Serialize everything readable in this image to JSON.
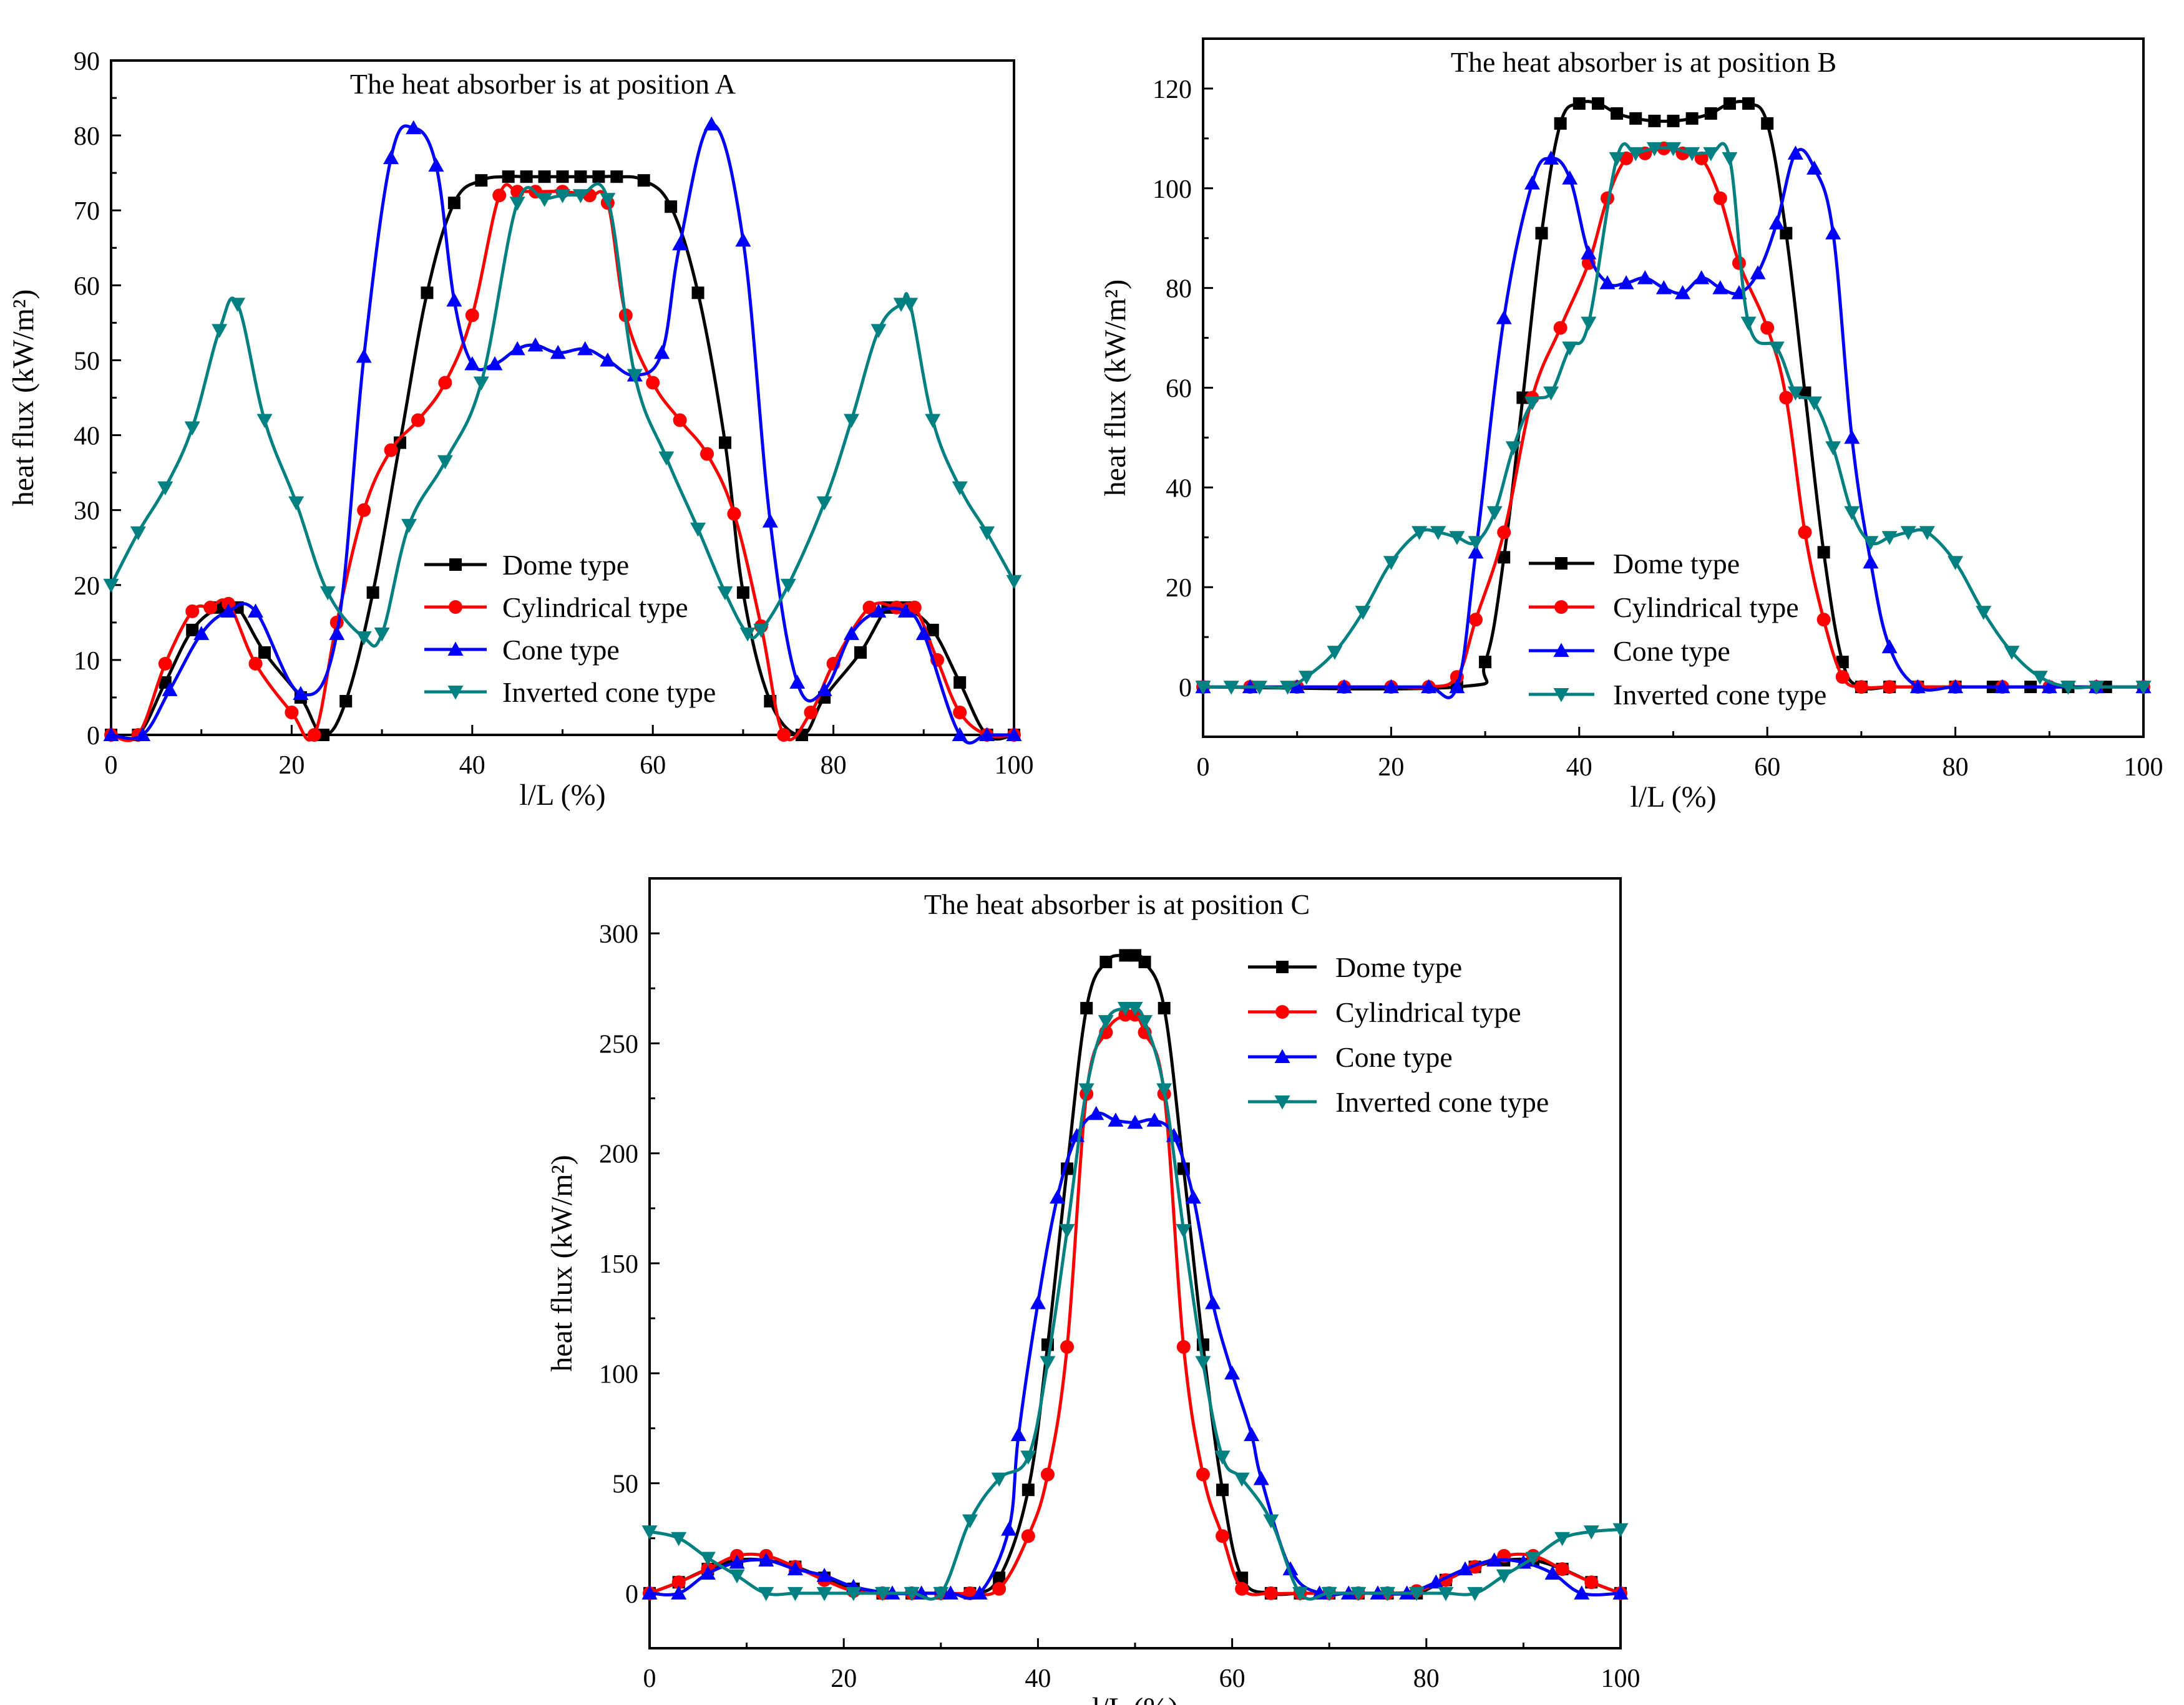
{
  "figure": {
    "colors": {
      "dome": "#000000",
      "cylindrical": "#ff0000",
      "cone": "#0000ff",
      "inverted": "#008080"
    }
  },
  "chart_data": [
    {
      "type": "line",
      "title": "The heat absorber is at position A",
      "xlabel": "l/L (%)",
      "ylabel": "heat flux (kW/m²)",
      "xlim": [
        0,
        100
      ],
      "ylim": [
        0,
        90
      ],
      "xticks": [
        0,
        20,
        40,
        60,
        80,
        100
      ],
      "yticks": [
        0,
        10,
        20,
        30,
        40,
        50,
        60,
        70,
        80,
        90
      ],
      "legend": "lower-center",
      "series": [
        {
          "name": "Dome type",
          "marker": "square",
          "color": "#000000",
          "x": [
            0,
            3,
            6,
            9,
            12,
            14,
            17,
            21,
            23.5,
            26,
            29,
            32,
            35,
            38,
            41,
            44,
            46,
            48,
            50,
            52,
            54,
            56,
            59,
            62,
            65,
            68,
            70,
            73,
            76.5,
            79,
            83,
            86,
            88,
            91,
            94,
            97,
            100
          ],
          "y": [
            0,
            0,
            7,
            14,
            17,
            17,
            11,
            5,
            0,
            4.5,
            19,
            39,
            59,
            71,
            74,
            74.5,
            74.5,
            74.5,
            74.5,
            74.5,
            74.5,
            74.5,
            74,
            70.5,
            59,
            39,
            19,
            4.5,
            0,
            5,
            11,
            17,
            17,
            14,
            7,
            0,
            0
          ]
        },
        {
          "name": "Cylindrical type",
          "marker": "circle",
          "color": "#ff0000",
          "x": [
            0,
            3,
            6,
            9,
            11,
            13,
            16,
            20,
            22.5,
            25,
            28,
            31,
            34,
            37,
            40,
            43,
            45,
            47,
            50,
            53,
            55,
            57,
            60,
            63,
            66,
            69,
            72,
            74.5,
            77.5,
            80,
            84,
            87,
            89,
            91.5,
            94,
            97,
            100
          ],
          "y": [
            0,
            0,
            9.5,
            16.5,
            17,
            17.5,
            9.5,
            3,
            0,
            15,
            30,
            38,
            42,
            47,
            56,
            72,
            72.5,
            72.5,
            72.5,
            72,
            71,
            56,
            47,
            42,
            37.5,
            29.5,
            14.5,
            0,
            3,
            9.5,
            17,
            17,
            17,
            10,
            3,
            0,
            0
          ]
        },
        {
          "name": "Cone type",
          "marker": "triangle-up",
          "color": "#0000ff",
          "x": [
            0,
            3.5,
            6.5,
            10,
            13,
            16,
            21,
            25,
            28,
            31,
            33.5,
            36,
            38,
            40,
            42.5,
            45,
            47,
            49.5,
            52.5,
            55,
            58,
            61,
            63,
            66.5,
            70,
            73,
            76,
            79,
            82,
            85,
            88,
            90,
            94,
            97,
            100
          ],
          "y": [
            0,
            0,
            6,
            13.5,
            16.5,
            16.5,
            5.5,
            13.5,
            50.5,
            77,
            81,
            76,
            58,
            49.5,
            49.5,
            51.5,
            52,
            51,
            51.5,
            50,
            48,
            51,
            65.5,
            81.5,
            66,
            28.5,
            7,
            6,
            13.5,
            16.5,
            16.5,
            13.5,
            0,
            0,
            0
          ]
        },
        {
          "name": "Inverted cone type",
          "marker": "triangle-down",
          "color": "#008080",
          "x": [
            0,
            3,
            6,
            9,
            12,
            14,
            17,
            20.5,
            24,
            28,
            30,
            33,
            37,
            41,
            45,
            48,
            50,
            52,
            55,
            58,
            61.5,
            65,
            68,
            70.5,
            72,
            75,
            79,
            82,
            85,
            87.5,
            88.5,
            91,
            94,
            97,
            100
          ],
          "y": [
            20,
            27,
            33,
            41,
            54,
            57.5,
            42,
            31,
            19,
            13,
            13.5,
            28,
            36.5,
            47,
            71,
            71.5,
            72,
            72,
            71.5,
            48,
            37,
            27.5,
            19,
            13.5,
            14,
            20,
            31,
            42,
            54,
            57.5,
            57.5,
            42,
            33,
            27,
            20.5
          ]
        }
      ]
    },
    {
      "type": "line",
      "title": "The heat absorber is at position B",
      "xlabel": "l/L (%)",
      "ylabel": "heat flux (kW/m²)",
      "xlim": [
        0,
        100
      ],
      "ylim": [
        -10,
        130
      ],
      "xticks": [
        0,
        20,
        40,
        60,
        80,
        100
      ],
      "yticks": [
        0,
        20,
        40,
        60,
        80,
        100,
        120
      ],
      "legend": "lower-center",
      "series": [
        {
          "name": "Dome type",
          "marker": "square",
          "color": "#000000",
          "x": [
            0,
            27,
            30,
            32,
            34,
            36,
            38,
            40,
            42,
            44,
            46,
            48,
            50,
            52,
            54,
            56,
            58,
            60,
            62,
            64,
            66,
            68,
            70,
            73,
            76,
            80,
            84,
            88,
            92,
            96,
            100
          ],
          "y": [
            0,
            0,
            5,
            26,
            58,
            91,
            113,
            117,
            117,
            115,
            114,
            113.5,
            113.5,
            114,
            115,
            117,
            117,
            113,
            91,
            59,
            27,
            5,
            0,
            0,
            0,
            0,
            0,
            0,
            0,
            0,
            0
          ]
        },
        {
          "name": "Cylindrical type",
          "marker": "circle",
          "color": "#ff0000",
          "x": [
            0,
            5,
            10,
            15,
            20,
            24,
            27,
            29,
            32,
            35,
            38,
            41,
            43,
            45,
            47,
            49,
            51,
            53,
            55,
            57,
            60,
            62,
            64,
            66,
            68,
            70,
            73,
            76,
            80,
            85,
            90,
            95,
            100
          ],
          "y": [
            0,
            0,
            0,
            0,
            0,
            0,
            2,
            13.5,
            31,
            58,
            72,
            85,
            98,
            106,
            107,
            108,
            107,
            106,
            98,
            85,
            72,
            58,
            31,
            13.5,
            2,
            0,
            0,
            0,
            0,
            0,
            0,
            0,
            0
          ]
        },
        {
          "name": "Cone type",
          "marker": "triangle-up",
          "color": "#0000ff",
          "x": [
            0,
            5,
            10,
            15,
            20,
            24,
            27,
            29,
            32,
            35,
            37,
            39,
            41,
            43,
            45,
            47,
            49,
            51,
            53,
            55,
            57,
            59,
            61,
            63,
            65,
            67,
            69,
            71,
            73,
            76,
            80,
            85,
            90,
            95,
            100
          ],
          "y": [
            0,
            0,
            0,
            0,
            0,
            0,
            0,
            27,
            74,
            101,
            106,
            102,
            87,
            81,
            81,
            82,
            80,
            79,
            82,
            80,
            79,
            83,
            93,
            107,
            104,
            91,
            50,
            25,
            8,
            0,
            0,
            0,
            0,
            0,
            0
          ]
        },
        {
          "name": "Inverted cone type",
          "marker": "triangle-down",
          "color": "#008080",
          "x": [
            0,
            3,
            6,
            9,
            11,
            14,
            17,
            20,
            23,
            25,
            27,
            29,
            31,
            33,
            35,
            37,
            39,
            41,
            44,
            46,
            48,
            50,
            52,
            54,
            56,
            58,
            61,
            63,
            65,
            67,
            69,
            71,
            73,
            75,
            77,
            80,
            83,
            86,
            89,
            92,
            95,
            100
          ],
          "y": [
            0,
            0,
            0,
            0,
            2,
            7,
            15,
            25,
            31,
            31,
            30,
            29,
            35,
            48,
            57,
            59,
            68,
            73,
            106,
            107,
            108,
            108,
            107,
            107,
            106,
            73,
            68,
            59,
            57,
            48,
            35,
            29,
            30,
            31,
            31,
            25,
            15,
            7,
            2,
            0,
            0,
            0
          ]
        }
      ]
    },
    {
      "type": "line",
      "title": "The heat absorber is at position C",
      "xlabel": "l/L (%)",
      "ylabel": "heat flux (kW/m²)",
      "xlim": [
        0,
        100
      ],
      "ylim": [
        -25,
        325
      ],
      "xticks": [
        0,
        20,
        40,
        60,
        80,
        100
      ],
      "yticks": [
        0,
        50,
        100,
        150,
        200,
        250,
        300
      ],
      "legend": "top-right",
      "series": [
        {
          "name": "Dome type",
          "marker": "square",
          "color": "#000000",
          "x": [
            0,
            3,
            6,
            9,
            12,
            15,
            18,
            21,
            24,
            27,
            30,
            33,
            36,
            39,
            41,
            43,
            45,
            47,
            49,
            50,
            51,
            53,
            55,
            57,
            59,
            61,
            64,
            67,
            70,
            73,
            76,
            79,
            82,
            85,
            88,
            91,
            94,
            97,
            100
          ],
          "y": [
            0,
            5,
            11,
            15,
            15,
            12,
            7,
            2,
            0,
            0,
            0,
            0,
            7,
            47,
            113,
            193,
            266,
            287,
            290,
            290,
            287,
            266,
            193,
            113,
            47,
            7,
            0,
            0,
            0,
            0,
            0,
            0,
            6,
            12,
            15,
            15,
            11,
            5,
            0
          ]
        },
        {
          "name": "Cylindrical type",
          "marker": "circle",
          "color": "#ff0000",
          "x": [
            0,
            3,
            6,
            9,
            12,
            15,
            18,
            21,
            24,
            27,
            30,
            33,
            36,
            39,
            41,
            43,
            45,
            47,
            49,
            50,
            51,
            53,
            55,
            57,
            59,
            61,
            64,
            67,
            70,
            73,
            76,
            79,
            82,
            85,
            88,
            91,
            94,
            97,
            100
          ],
          "y": [
            0,
            5,
            11,
            17,
            17,
            12,
            6,
            1,
            0,
            0,
            0,
            0,
            2,
            26,
            54,
            112,
            227,
            255,
            263,
            263,
            255,
            227,
            112,
            54,
            26,
            2,
            0,
            0,
            0,
            0,
            0,
            1,
            6,
            12,
            17,
            17,
            11,
            5,
            0
          ]
        },
        {
          "name": "Cone type",
          "marker": "triangle-up",
          "color": "#0000ff",
          "x": [
            0,
            3,
            6,
            9,
            12,
            15,
            18,
            21,
            25,
            28,
            31,
            34,
            37,
            38,
            40,
            42,
            44,
            46,
            48,
            50,
            52,
            54,
            56,
            58,
            60,
            62,
            63,
            66,
            69,
            72,
            75,
            78,
            81,
            84,
            87,
            90,
            93,
            96,
            100
          ],
          "y": [
            0,
            0,
            9,
            14,
            15,
            11,
            8,
            3,
            0,
            0,
            0,
            0,
            29,
            72,
            132,
            180,
            208,
            218,
            215,
            214,
            215,
            208,
            180,
            132,
            100,
            72,
            52,
            11,
            0,
            0,
            0,
            0,
            5,
            11,
            15,
            14,
            9,
            0,
            0
          ]
        },
        {
          "name": "Inverted cone type",
          "marker": "triangle-down",
          "color": "#008080",
          "x": [
            0,
            3,
            6,
            9,
            12,
            15,
            18,
            21,
            24,
            27,
            30,
            33,
            36,
            39,
            41,
            43,
            45,
            47,
            49,
            50,
            51,
            53,
            55,
            57,
            59,
            61,
            64,
            67,
            70,
            73,
            76,
            79,
            82,
            85,
            88,
            91,
            94,
            97,
            100
          ],
          "y": [
            28,
            25,
            16,
            8,
            0,
            0,
            0,
            0,
            0,
            0,
            0,
            33,
            52,
            62,
            105,
            165,
            229,
            260,
            266,
            266,
            260,
            229,
            165,
            105,
            62,
            52,
            33,
            0,
            0,
            0,
            0,
            0,
            0,
            0,
            8,
            16,
            25,
            28,
            29
          ]
        }
      ]
    }
  ]
}
